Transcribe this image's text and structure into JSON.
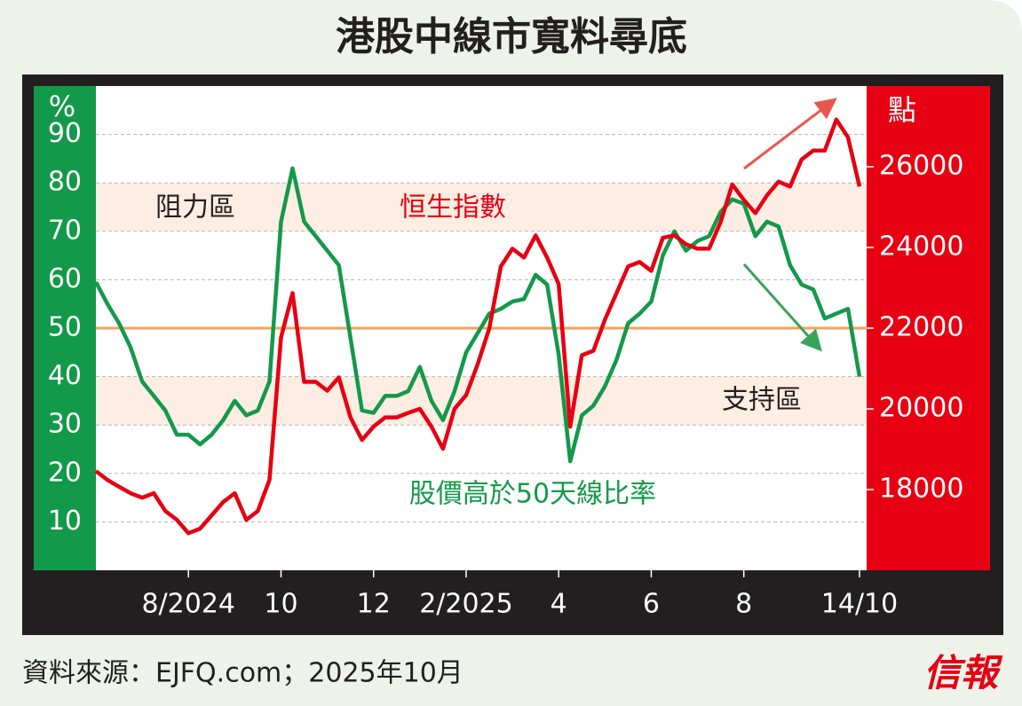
{
  "chart_data": {
    "type": "line",
    "title": "港股中線市寬料尋底",
    "ylabel": "%",
    "y2label": "點",
    "source": "資料來源：EJFQ.com；2025年10月",
    "brand": "信報",
    "ylim": [
      0,
      100
    ],
    "yticks": [
      10,
      20,
      30,
      40,
      50,
      60,
      70,
      80,
      90
    ],
    "y2lim": [
      16000,
      28000
    ],
    "y2ticks": [
      18000,
      20000,
      22000,
      24000,
      26000
    ],
    "xlim": [
      0,
      66
    ],
    "xticks": [
      {
        "value": 8,
        "label": "8/2024"
      },
      {
        "value": 16,
        "label": "10"
      },
      {
        "value": 24,
        "label": "12"
      },
      {
        "value": 32,
        "label": "2/2025"
      },
      {
        "value": 40,
        "label": "4"
      },
      {
        "value": 48,
        "label": "6"
      },
      {
        "value": 56,
        "label": "8"
      },
      {
        "value": 66,
        "label": "14/10"
      }
    ],
    "grid": true,
    "bands": [
      {
        "label": "阻力區",
        "range": [
          70,
          80
        ],
        "color": "#fdede2"
      },
      {
        "label": "支持區",
        "range": [
          30,
          40
        ],
        "color": "#fdede2"
      }
    ],
    "reference_line": {
      "value": 50,
      "color": "#f2a35a"
    },
    "series": [
      {
        "name": "股價高於50天線比率",
        "color": "#13994a",
        "axis": "y",
        "values": [
          59.5,
          55,
          51,
          46,
          39,
          36,
          33,
          28,
          28,
          26,
          28,
          31,
          35,
          32,
          33,
          39,
          72,
          83,
          72,
          69,
          66,
          63,
          48,
          33,
          32.5,
          36,
          36,
          37,
          42,
          35,
          31,
          37,
          45,
          49,
          53,
          54,
          55.5,
          56,
          61,
          59,
          44.5,
          22.5,
          32,
          34,
          38,
          43.5,
          51,
          53,
          55.5,
          65,
          70,
          66,
          68,
          69,
          74,
          76.6,
          75.7,
          69,
          72,
          71,
          63,
          59,
          58,
          52,
          53,
          54,
          40
        ]
      },
      {
        "name": "恒生指數",
        "color": "#e60012",
        "axis": "y2",
        "values": [
          18460,
          18240,
          18070,
          17910,
          17800,
          17910,
          17470,
          17250,
          16920,
          17030,
          17360,
          17690,
          17910,
          17250,
          17470,
          18240,
          21770,
          22870,
          20670,
          20670,
          20450,
          20780,
          19790,
          19230,
          19560,
          19790,
          19790,
          19900,
          20000,
          19560,
          19010,
          20000,
          20340,
          21110,
          21990,
          23530,
          23970,
          23750,
          24300,
          23750,
          23090,
          19560,
          21330,
          21440,
          22210,
          22870,
          23530,
          23640,
          23420,
          24240,
          24300,
          24080,
          23970,
          23970,
          24630,
          25560,
          25180,
          24850,
          25290,
          25630,
          25510,
          26180,
          26400,
          26400,
          27170,
          26730,
          25510
        ]
      }
    ]
  }
}
